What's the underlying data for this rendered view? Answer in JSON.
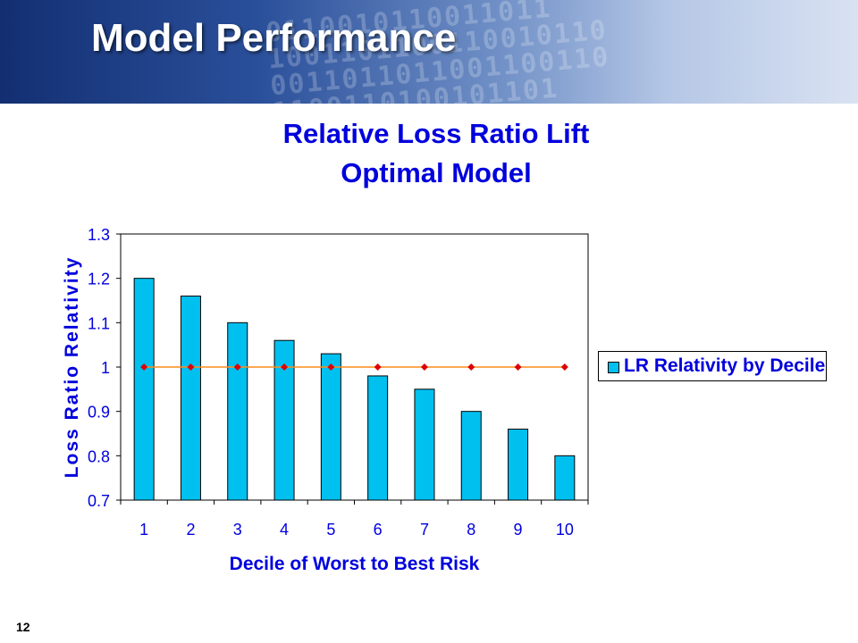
{
  "slide": {
    "title": "Model Performance",
    "page_number": "12",
    "banner_digits": [
      "0110010110011011",
      "1001101100110010110",
      "0011011011001100110",
      "1100110100101101"
    ]
  },
  "chart_data": {
    "type": "bar",
    "title": "Relative Loss Ratio Lift",
    "subtitle": "Optimal Model",
    "xlabel": "Decile of Worst to Best Risk",
    "ylabel": "Loss Ratio Relativity",
    "categories": [
      "1",
      "2",
      "3",
      "4",
      "5",
      "6",
      "7",
      "8",
      "9",
      "10"
    ],
    "series": [
      {
        "name": "LR Relativity by Decile",
        "type": "bar",
        "values": [
          1.2,
          1.16,
          1.1,
          1.06,
          1.03,
          0.98,
          0.95,
          0.9,
          0.86,
          0.8
        ],
        "color": "#00c0f0"
      },
      {
        "type": "line",
        "values": [
          1,
          1,
          1,
          1,
          1,
          1,
          1,
          1,
          1,
          1
        ],
        "line_color": "#ff8c1a",
        "marker_color": "#dd0000",
        "marker": "diamond"
      }
    ],
    "ylim": [
      0.7,
      1.3
    ],
    "yticks": [
      "0.7",
      "0.8",
      "0.9",
      "1",
      "1.1",
      "1.2",
      "1.3"
    ],
    "grid": false,
    "legend": "right",
    "text_color": "#0000dd"
  }
}
